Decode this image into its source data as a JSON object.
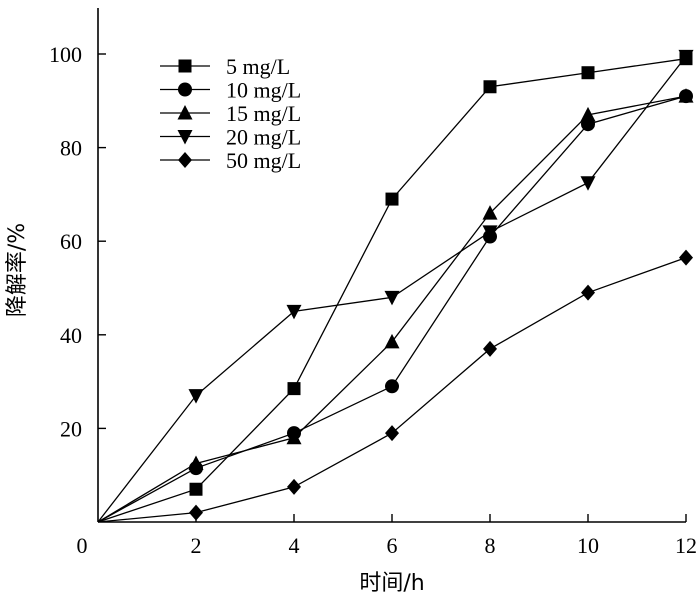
{
  "chart_data": {
    "type": "line",
    "title": "",
    "xlabel": "时间/h",
    "ylabel": "降解率/%",
    "x": [
      0,
      2,
      4,
      6,
      8,
      10,
      12
    ],
    "xlim": [
      0,
      12
    ],
    "ylim": [
      0,
      110
    ],
    "xticks": [
      0,
      2,
      4,
      6,
      8,
      10,
      12
    ],
    "yticks": [
      20,
      40,
      60,
      80,
      100
    ],
    "grid": false,
    "legend_position": "top-left",
    "series": [
      {
        "name": "5 mg/L",
        "marker": "square",
        "values": [
          0,
          7,
          28.5,
          69,
          93,
          96,
          99
        ]
      },
      {
        "name": "10 mg/L",
        "marker": "circle",
        "values": [
          0,
          11.5,
          19,
          29,
          61,
          85,
          91
        ]
      },
      {
        "name": "15 mg/L",
        "marker": "triangle-up",
        "values": [
          0,
          12.5,
          18,
          38.5,
          66,
          87,
          91
        ]
      },
      {
        "name": "20 mg/L",
        "marker": "triangle-down",
        "values": [
          0,
          27,
          45,
          48,
          62,
          72.5,
          99.5
        ]
      },
      {
        "name": "50 mg/L",
        "marker": "diamond",
        "values": [
          0,
          2,
          7.5,
          19,
          37,
          49,
          56.5
        ]
      }
    ]
  }
}
